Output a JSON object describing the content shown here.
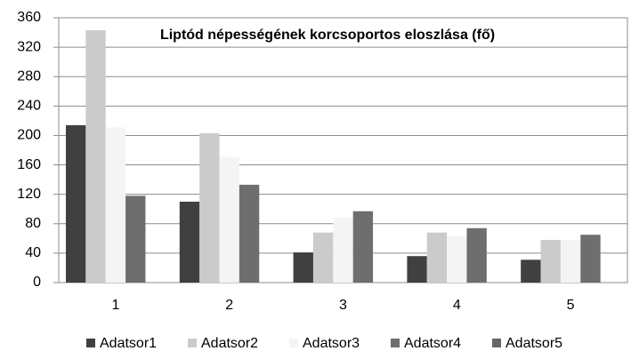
{
  "chart_data": {
    "type": "bar",
    "title": "Liptód népességének korcsoportos eloszlása (fő)",
    "categories": [
      "1",
      "2",
      "3",
      "4",
      "5"
    ],
    "series": [
      {
        "name": "Adatsor1",
        "color": "#404040",
        "values": [
          214,
          110,
          41,
          36,
          31
        ]
      },
      {
        "name": "Adatsor2",
        "color": "#cbcbcb",
        "values": [
          343,
          203,
          68,
          68,
          58
        ]
      },
      {
        "name": "Adatsor3",
        "color": "#f4f4f4",
        "values": [
          211,
          171,
          88,
          63,
          58
        ]
      },
      {
        "name": "Adatsor4",
        "color": "#6e6e6e",
        "values": [
          118,
          133,
          97,
          74,
          65
        ]
      },
      {
        "name": "Adatsor5",
        "color": "#666666",
        "values": [
          null,
          null,
          null,
          null,
          null
        ]
      }
    ],
    "ylim": [
      0,
      360
    ],
    "yticks": [
      0,
      40,
      80,
      120,
      160,
      200,
      240,
      280,
      320,
      360
    ],
    "grid": true,
    "legend": "bottom"
  }
}
